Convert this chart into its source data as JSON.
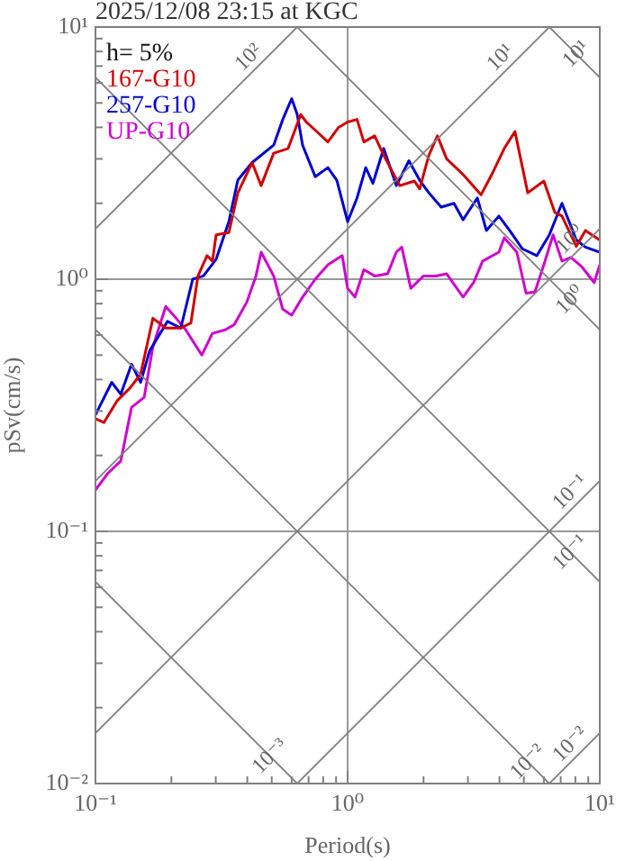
{
  "chart_data": {
    "type": "line",
    "title": "2025/12/08 23:15 at KGC",
    "xlabel": "Period(s)",
    "ylabel": "pSv(cm/s)",
    "log": "xy",
    "grid": true,
    "legend": "top left",
    "marker": "none",
    "line_style": "solid",
    "xlim": [
      0.1,
      10
    ],
    "ylim": [
      0.01,
      10
    ],
    "xticks": [
      {
        "value": 0.1,
        "label": "10⁻¹"
      },
      {
        "value": 0.2,
        "label": null
      },
      {
        "value": 0.3,
        "label": null
      },
      {
        "value": 0.4,
        "label": null
      },
      {
        "value": 0.5,
        "label": null
      },
      {
        "value": 0.6,
        "label": null
      },
      {
        "value": 0.7,
        "label": null
      },
      {
        "value": 0.8,
        "label": null
      },
      {
        "value": 0.9,
        "label": null
      },
      {
        "value": 1,
        "label": "10⁰"
      },
      {
        "value": 2,
        "label": null
      },
      {
        "value": 3,
        "label": null
      },
      {
        "value": 4,
        "label": null
      },
      {
        "value": 5,
        "label": null
      },
      {
        "value": 6,
        "label": null
      },
      {
        "value": 7,
        "label": null
      },
      {
        "value": 8,
        "label": null
      },
      {
        "value": 9,
        "label": null
      },
      {
        "value": 10,
        "label": "10¹"
      }
    ],
    "yticks": [
      {
        "value": 0.01,
        "label": "10⁻²"
      },
      {
        "value": 0.02,
        "label": null
      },
      {
        "value": 0.03,
        "label": null
      },
      {
        "value": 0.04,
        "label": null
      },
      {
        "value": 0.05,
        "label": null
      },
      {
        "value": 0.06,
        "label": null
      },
      {
        "value": 0.07,
        "label": null
      },
      {
        "value": 0.08,
        "label": null
      },
      {
        "value": 0.09,
        "label": null
      },
      {
        "value": 0.1,
        "label": "10⁻¹"
      },
      {
        "value": 0.2,
        "label": null
      },
      {
        "value": 0.3,
        "label": null
      },
      {
        "value": 0.4,
        "label": null
      },
      {
        "value": 0.5,
        "label": null
      },
      {
        "value": 0.6,
        "label": null
      },
      {
        "value": 0.7,
        "label": null
      },
      {
        "value": 0.8,
        "label": null
      },
      {
        "value": 0.9,
        "label": null
      },
      {
        "value": 1,
        "label": "10⁰"
      },
      {
        "value": 2,
        "label": null
      },
      {
        "value": 3,
        "label": null
      },
      {
        "value": 4,
        "label": null
      },
      {
        "value": 5,
        "label": null
      },
      {
        "value": 6,
        "label": null
      },
      {
        "value": 7,
        "label": null
      },
      {
        "value": 8,
        "label": null
      },
      {
        "value": 9,
        "label": null
      },
      {
        "value": 10,
        "label": "10¹"
      }
    ],
    "series": [
      {
        "color": "#808080",
        "x": [
          0.1,
          0.631
        ],
        "values": [
          1.585,
          10
        ]
      },
      {
        "color": "#808080",
        "x": [
          0.1,
          6.31
        ],
        "values": [
          0.1585,
          10
        ]
      },
      {
        "color": "#808080",
        "x": [
          0.1,
          10
        ],
        "values": [
          0.01585,
          1.585
        ]
      },
      {
        "color": "#808080",
        "x": [
          0.631,
          10
        ],
        "values": [
          0.01,
          0.1585
        ]
      },
      {
        "color": "#808080",
        "x": [
          6.31,
          10
        ],
        "values": [
          0.01,
          0.01585
        ]
      },
      {
        "color": "#808080",
        "x": [
          6.31,
          10
        ],
        "values": [
          10,
          6.31
        ]
      },
      {
        "color": "#808080",
        "x": [
          0.631,
          10
        ],
        "values": [
          10,
          0.631
        ]
      },
      {
        "color": "#808080",
        "x": [
          0.1,
          10
        ],
        "values": [
          6.31,
          0.0631
        ]
      },
      {
        "color": "#808080",
        "x": [
          0.1,
          6.31
        ],
        "values": [
          0.631,
          0.01
        ]
      },
      {
        "color": "#808080",
        "x": [
          0.1,
          0.631
        ],
        "values": [
          0.0631,
          0.01
        ]
      },
      {
        "name": "167-G10",
        "color": "#d00000",
        "x": [
          0.1,
          0.108,
          0.122,
          0.137,
          0.151,
          0.169,
          0.19,
          0.218,
          0.239,
          0.255,
          0.277,
          0.291,
          0.301,
          0.338,
          0.367,
          0.418,
          0.454,
          0.509,
          0.581,
          0.652,
          0.685,
          0.744,
          0.835,
          0.921,
          1,
          1.09,
          1.16,
          1.28,
          1.39,
          1.61,
          1.84,
          1.93,
          2.1,
          2.27,
          2.47,
          2.87,
          3.38,
          3.73,
          4.18,
          4.61,
          5.18,
          6.0,
          6.63,
          7.08,
          8.07,
          8.77,
          10
        ],
        "values": [
          0.28,
          0.27,
          0.33,
          0.37,
          0.42,
          0.7,
          0.64,
          0.64,
          0.67,
          1.03,
          1.24,
          1.18,
          1.5,
          1.53,
          2.2,
          2.9,
          2.35,
          3.16,
          3.3,
          4.5,
          4.2,
          3.9,
          3.5,
          4.0,
          4.2,
          4.3,
          3.5,
          3.7,
          3.1,
          2.35,
          2.45,
          2.28,
          3.1,
          3.7,
          3.0,
          2.6,
          2.16,
          2.6,
          3.3,
          3.85,
          2.2,
          2.45,
          1.84,
          1.78,
          1.35,
          1.56,
          1.43
        ]
      },
      {
        "name": "257-G10",
        "color": "#0000d0",
        "x": [
          0.1,
          0.116,
          0.126,
          0.139,
          0.151,
          0.164,
          0.193,
          0.218,
          0.243,
          0.268,
          0.301,
          0.338,
          0.367,
          0.418,
          0.509,
          0.553,
          0.6,
          0.631,
          0.663,
          0.744,
          0.835,
          0.906,
          1,
          1.09,
          1.18,
          1.26,
          1.39,
          1.56,
          1.75,
          1.93,
          2.1,
          2.35,
          2.64,
          2.87,
          3.27,
          3.55,
          3.98,
          4.39,
          4.93,
          5.63,
          6.31,
          7.08,
          8.07,
          8.77,
          10
        ],
        "values": [
          0.29,
          0.39,
          0.35,
          0.46,
          0.39,
          0.52,
          0.68,
          0.64,
          1.0,
          1.03,
          1.2,
          1.69,
          2.47,
          2.9,
          3.4,
          4.3,
          5.2,
          4.5,
          3.4,
          2.55,
          2.77,
          2.47,
          1.69,
          2.1,
          2.77,
          2.4,
          3.3,
          2.35,
          2.95,
          2.47,
          2.2,
          1.93,
          2.0,
          1.72,
          2.1,
          1.56,
          1.78,
          1.56,
          1.32,
          1.24,
          1.5,
          2.0,
          1.43,
          1.34,
          1.28
        ]
      },
      {
        "name": "UP-G10",
        "color": "#d000d0",
        "x": [
          0.1,
          0.112,
          0.126,
          0.139,
          0.156,
          0.169,
          0.19,
          0.209,
          0.228,
          0.264,
          0.291,
          0.327,
          0.355,
          0.398,
          0.433,
          0.454,
          0.509,
          0.553,
          0.6,
          0.663,
          0.744,
          0.835,
          0.952,
          1,
          1.07,
          1.16,
          1.28,
          1.44,
          1.56,
          1.64,
          1.78,
          2.0,
          2.24,
          2.47,
          2.87,
          3.16,
          3.43,
          3.98,
          4.18,
          4.69,
          5.1,
          5.53,
          6.0,
          6.53,
          7.08,
          7.68,
          8.49,
          9.5,
          10
        ],
        "values": [
          0.146,
          0.17,
          0.19,
          0.31,
          0.34,
          0.54,
          0.78,
          0.7,
          0.63,
          0.5,
          0.61,
          0.63,
          0.66,
          0.81,
          1.03,
          1.28,
          1.03,
          0.76,
          0.72,
          0.85,
          1.0,
          1.14,
          1.24,
          0.92,
          0.85,
          1.09,
          1.03,
          1.05,
          1.28,
          1.34,
          0.92,
          1.03,
          1.03,
          1.05,
          0.85,
          0.97,
          1.18,
          1.28,
          1.46,
          1.28,
          0.88,
          0.89,
          1.14,
          1.5,
          1.18,
          1.22,
          1.12,
          0.97,
          1.14
        ]
      }
    ],
    "annotations": [
      "h= 5%",
      {
        "text": "10²",
        "x": 0.44,
        "y": 6.97
      },
      {
        "text": "10¹",
        "x": 4.39,
        "y": 6.96
      },
      {
        "text": "10¹",
        "x": 8.77,
        "y": 7.19
      },
      {
        "text": "10⁰",
        "x": 8.3,
        "y": 1.32
      },
      {
        "text": "10⁰",
        "x": 8.3,
        "y": 0.76
      },
      {
        "text": "10⁻¹",
        "x": 8.3,
        "y": 0.1316
      },
      {
        "text": "10⁻¹",
        "x": 8.3,
        "y": 0.076
      },
      {
        "text": "10⁻²",
        "x": 8.3,
        "y": 0.01316
      },
      {
        "text": "10⁻²",
        "x": 5.63,
        "y": 0.0112
      },
      {
        "text": "10⁻³",
        "x": 0.535,
        "y": 0.0118
      }
    ]
  }
}
